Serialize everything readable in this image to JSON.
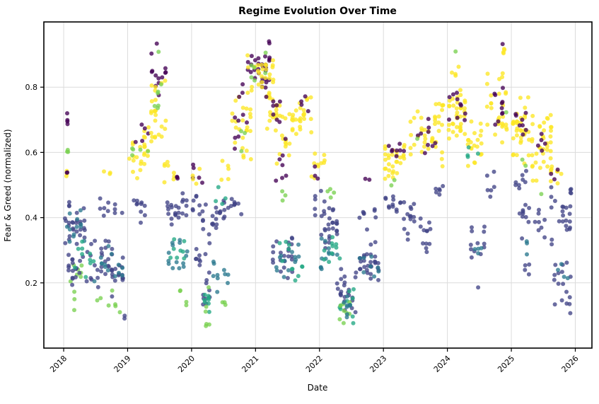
{
  "figure": {
    "background": "#ffffff",
    "grid_color": "#dcdcdc",
    "spine_color": "#000000"
  },
  "chart_data": {
    "type": "scatter",
    "title": "Regime Evolution Over Time",
    "xlabel": "Date",
    "ylabel": "Fear & Greed (normalized)",
    "xlim": [
      2017.69,
      2026.26
    ],
    "ylim": [
      0.0,
      1.0
    ],
    "x_ticks": [
      2018,
      2019,
      2020,
      2021,
      2022,
      2023,
      2024,
      2025,
      2026
    ],
    "x_tick_labels": [
      "2018",
      "2019",
      "2020",
      "2021",
      "2022",
      "2023",
      "2024",
      "2025",
      "2026"
    ],
    "y_ticks": [
      0.2,
      0.4,
      0.6,
      0.8
    ],
    "y_tick_labels": [
      "0.2",
      "0.4",
      "0.6",
      "0.8"
    ],
    "grid": true,
    "point_radius": 3,
    "point_opacity": 0.78,
    "regime_colors": [
      "#440154",
      "#414487",
      "#2a788e",
      "#22a884",
      "#7ad151",
      "#fde725"
    ],
    "clusters_format": [
      "t_start_year",
      "t_end_year",
      "y_min",
      "y_max",
      "n_points",
      "color_index"
    ],
    "clusters": [
      [
        2018.02,
        2018.1,
        0.64,
        0.75,
        4,
        0
      ],
      [
        2018.02,
        2018.1,
        0.58,
        0.64,
        3,
        4
      ],
      [
        2018.02,
        2018.12,
        0.52,
        0.57,
        3,
        5
      ],
      [
        2018.03,
        2018.08,
        0.52,
        0.56,
        2,
        0
      ],
      [
        2018.0,
        2018.35,
        0.3,
        0.47,
        28,
        1
      ],
      [
        2018.02,
        2018.35,
        0.28,
        0.45,
        12,
        2
      ],
      [
        2018.02,
        2018.3,
        0.1,
        0.3,
        10,
        4
      ],
      [
        2018.05,
        2018.45,
        0.18,
        0.32,
        20,
        1
      ],
      [
        2018.15,
        2018.5,
        0.2,
        0.35,
        10,
        3
      ],
      [
        2018.4,
        2018.95,
        0.15,
        0.35,
        40,
        1
      ],
      [
        2018.45,
        2018.95,
        0.18,
        0.33,
        14,
        2
      ],
      [
        2018.5,
        2018.9,
        0.08,
        0.18,
        7,
        4
      ],
      [
        2018.55,
        2018.95,
        0.38,
        0.48,
        10,
        1
      ],
      [
        2018.6,
        2018.75,
        0.5,
        0.55,
        3,
        5
      ],
      [
        2018.85,
        2018.98,
        0.05,
        0.12,
        2,
        1
      ],
      [
        2019.0,
        2019.35,
        0.5,
        0.68,
        24,
        5
      ],
      [
        2019.05,
        2019.35,
        0.55,
        0.66,
        5,
        4
      ],
      [
        2019.1,
        2019.35,
        0.6,
        0.72,
        5,
        0
      ],
      [
        2019.0,
        2019.3,
        0.38,
        0.49,
        10,
        1
      ],
      [
        2019.35,
        2019.62,
        0.75,
        0.92,
        12,
        0
      ],
      [
        2019.35,
        2019.62,
        0.6,
        0.84,
        24,
        5
      ],
      [
        2019.4,
        2019.6,
        0.62,
        0.88,
        6,
        4
      ],
      [
        2019.42,
        2019.5,
        0.93,
        0.96,
        1,
        0
      ],
      [
        2019.45,
        2019.52,
        0.9,
        0.92,
        1,
        4
      ],
      [
        2019.55,
        2019.75,
        0.5,
        0.6,
        8,
        5
      ],
      [
        2019.6,
        2019.95,
        0.36,
        0.48,
        22,
        1
      ],
      [
        2019.62,
        2019.95,
        0.2,
        0.35,
        14,
        2
      ],
      [
        2019.65,
        2019.9,
        0.22,
        0.38,
        8,
        3
      ],
      [
        2019.7,
        2019.8,
        0.5,
        0.55,
        3,
        0
      ],
      [
        2019.75,
        2019.95,
        0.1,
        0.2,
        4,
        4
      ],
      [
        2020.0,
        2020.2,
        0.5,
        0.57,
        5,
        0
      ],
      [
        2020.0,
        2020.2,
        0.5,
        0.56,
        4,
        5
      ],
      [
        2020.0,
        2020.25,
        0.36,
        0.48,
        12,
        1
      ],
      [
        2020.05,
        2020.3,
        0.24,
        0.36,
        10,
        1
      ],
      [
        2020.16,
        2020.3,
        0.1,
        0.32,
        10,
        1
      ],
      [
        2020.18,
        2020.3,
        0.07,
        0.25,
        8,
        3
      ],
      [
        2020.2,
        2020.3,
        0.05,
        0.2,
        6,
        4
      ],
      [
        2020.3,
        2020.6,
        0.35,
        0.47,
        18,
        1
      ],
      [
        2020.32,
        2020.6,
        0.16,
        0.3,
        10,
        2
      ],
      [
        2020.35,
        2020.55,
        0.42,
        0.5,
        4,
        3
      ],
      [
        2020.4,
        2020.6,
        0.5,
        0.6,
        5,
        5
      ],
      [
        2020.45,
        2020.55,
        0.1,
        0.18,
        3,
        4
      ],
      [
        2020.6,
        2020.95,
        0.55,
        0.8,
        24,
        5
      ],
      [
        2020.65,
        2020.95,
        0.6,
        0.85,
        10,
        0
      ],
      [
        2020.7,
        2020.9,
        0.6,
        0.75,
        3,
        4
      ],
      [
        2020.6,
        2020.8,
        0.4,
        0.5,
        8,
        1
      ],
      [
        2020.85,
        2021.3,
        0.78,
        0.96,
        30,
        0
      ],
      [
        2020.85,
        2021.3,
        0.75,
        0.96,
        30,
        5
      ],
      [
        2020.9,
        2021.25,
        0.8,
        0.93,
        6,
        4
      ],
      [
        2021.15,
        2021.4,
        0.65,
        0.8,
        18,
        5
      ],
      [
        2021.15,
        2021.4,
        0.65,
        0.8,
        8,
        0
      ],
      [
        2021.3,
        2021.55,
        0.55,
        0.75,
        14,
        5
      ],
      [
        2021.3,
        2021.5,
        0.5,
        0.65,
        7,
        0
      ],
      [
        2021.25,
        2021.6,
        0.2,
        0.36,
        22,
        1
      ],
      [
        2021.3,
        2021.6,
        0.2,
        0.32,
        8,
        2
      ],
      [
        2021.35,
        2021.55,
        0.25,
        0.35,
        5,
        3
      ],
      [
        2021.4,
        2021.5,
        0.44,
        0.5,
        3,
        4
      ],
      [
        2021.55,
        2021.9,
        0.65,
        0.8,
        26,
        5
      ],
      [
        2021.6,
        2021.85,
        0.7,
        0.78,
        4,
        0
      ],
      [
        2021.55,
        2021.75,
        0.2,
        0.3,
        6,
        3
      ],
      [
        2021.6,
        2021.8,
        0.22,
        0.32,
        5,
        2
      ],
      [
        2021.85,
        2022.1,
        0.5,
        0.62,
        10,
        5
      ],
      [
        2021.9,
        2022.05,
        0.5,
        0.56,
        3,
        0
      ],
      [
        2021.9,
        2022.1,
        0.4,
        0.5,
        8,
        1
      ],
      [
        2022.0,
        2022.3,
        0.3,
        0.46,
        24,
        1
      ],
      [
        2022.0,
        2022.3,
        0.2,
        0.35,
        12,
        2
      ],
      [
        2022.05,
        2022.35,
        0.22,
        0.36,
        10,
        3
      ],
      [
        2022.1,
        2022.25,
        0.45,
        0.5,
        4,
        4
      ],
      [
        2022.25,
        2022.6,
        0.08,
        0.26,
        22,
        1
      ],
      [
        2022.3,
        2022.55,
        0.06,
        0.22,
        10,
        3
      ],
      [
        2022.3,
        2022.5,
        0.05,
        0.18,
        8,
        4
      ],
      [
        2022.35,
        2022.5,
        0.08,
        0.2,
        8,
        2
      ],
      [
        2022.55,
        2022.95,
        0.2,
        0.34,
        30,
        1
      ],
      [
        2022.6,
        2022.95,
        0.2,
        0.3,
        8,
        2
      ],
      [
        2022.6,
        2022.9,
        0.35,
        0.45,
        8,
        1
      ],
      [
        2022.65,
        2022.8,
        0.5,
        0.54,
        2,
        0
      ],
      [
        2023.0,
        2023.35,
        0.5,
        0.66,
        30,
        5
      ],
      [
        2023.05,
        2023.35,
        0.52,
        0.68,
        8,
        0
      ],
      [
        2023.0,
        2023.3,
        0.4,
        0.5,
        12,
        1
      ],
      [
        2023.1,
        2023.2,
        0.48,
        0.52,
        2,
        4
      ],
      [
        2023.3,
        2023.5,
        0.33,
        0.49,
        14,
        1
      ],
      [
        2023.55,
        2023.75,
        0.27,
        0.45,
        12,
        1
      ],
      [
        2023.4,
        2023.95,
        0.55,
        0.75,
        36,
        5
      ],
      [
        2023.45,
        2023.9,
        0.58,
        0.72,
        9,
        0
      ],
      [
        2023.5,
        2023.6,
        0.62,
        0.66,
        1,
        4
      ],
      [
        2023.75,
        2023.95,
        0.45,
        0.52,
        6,
        1
      ],
      [
        2023.8,
        2023.95,
        0.7,
        0.78,
        6,
        5
      ],
      [
        2024.0,
        2024.3,
        0.62,
        0.82,
        36,
        5
      ],
      [
        2024.0,
        2024.3,
        0.65,
        0.82,
        10,
        0
      ],
      [
        2024.1,
        2024.16,
        0.9,
        0.92,
        1,
        4
      ],
      [
        2024.05,
        2024.2,
        0.83,
        0.87,
        4,
        5
      ],
      [
        2024.3,
        2024.55,
        0.55,
        0.72,
        20,
        5
      ],
      [
        2024.3,
        2024.5,
        0.55,
        0.65,
        4,
        3
      ],
      [
        2024.35,
        2024.6,
        0.25,
        0.38,
        12,
        1
      ],
      [
        2024.4,
        2024.55,
        0.28,
        0.35,
        4,
        2
      ],
      [
        2024.45,
        2024.5,
        0.17,
        0.2,
        1,
        1
      ],
      [
        2024.6,
        2024.95,
        0.62,
        0.88,
        30,
        5
      ],
      [
        2024.65,
        2024.95,
        0.65,
        0.85,
        10,
        0
      ],
      [
        2024.85,
        2024.98,
        0.88,
        0.94,
        4,
        5
      ],
      [
        2024.84,
        2024.88,
        0.92,
        0.94,
        1,
        0
      ],
      [
        2024.9,
        2024.95,
        0.72,
        0.75,
        1,
        4
      ],
      [
        2024.6,
        2024.75,
        0.45,
        0.55,
        6,
        1
      ],
      [
        2025.0,
        2025.3,
        0.55,
        0.8,
        34,
        5
      ],
      [
        2025.0,
        2025.25,
        0.62,
        0.78,
        8,
        0
      ],
      [
        2025.05,
        2025.3,
        0.45,
        0.55,
        8,
        1
      ],
      [
        2025.1,
        2025.3,
        0.3,
        0.45,
        10,
        1
      ],
      [
        2025.15,
        2025.25,
        0.55,
        0.6,
        2,
        4
      ],
      [
        2025.18,
        2025.3,
        0.2,
        0.3,
        4,
        1
      ],
      [
        2025.2,
        2025.28,
        0.28,
        0.34,
        3,
        2
      ],
      [
        2025.3,
        2025.65,
        0.5,
        0.75,
        38,
        5
      ],
      [
        2025.35,
        2025.6,
        0.55,
        0.7,
        5,
        0
      ],
      [
        2025.45,
        2025.55,
        0.45,
        0.48,
        1,
        4
      ],
      [
        2025.35,
        2025.55,
        0.32,
        0.45,
        8,
        1
      ],
      [
        2025.6,
        2025.95,
        0.3,
        0.5,
        22,
        1
      ],
      [
        2025.65,
        2025.95,
        0.1,
        0.3,
        14,
        1
      ],
      [
        2025.7,
        2025.9,
        0.2,
        0.3,
        4,
        2
      ],
      [
        2025.6,
        2025.8,
        0.5,
        0.6,
        8,
        5
      ],
      [
        2025.6,
        2025.75,
        0.5,
        0.55,
        3,
        0
      ],
      [
        2025.9,
        2025.95,
        0.45,
        0.5,
        3,
        1
      ],
      [
        2025.88,
        2025.95,
        0.1,
        0.16,
        3,
        1
      ]
    ]
  }
}
